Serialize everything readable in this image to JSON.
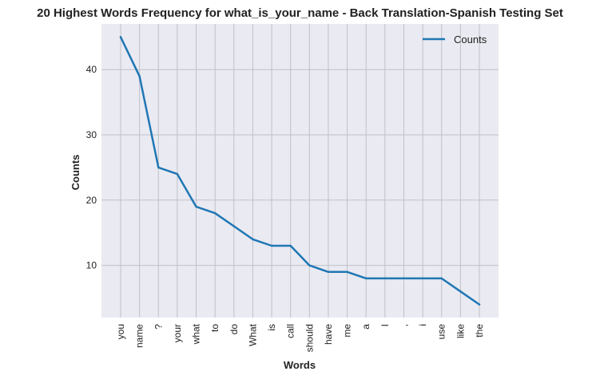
{
  "chart_data": {
    "type": "line",
    "title": "20 Highest Words Frequency for what_is_your_name - Back Translation-Spanish Testing Set",
    "xlabel": "Words",
    "ylabel": "Counts",
    "categories": [
      "you",
      "name",
      "?",
      "your",
      "what",
      "to",
      "do",
      "What",
      "is",
      "call",
      "should",
      "have",
      "me",
      "a",
      "I",
      ",",
      "i",
      "use",
      "like",
      "the"
    ],
    "series": [
      {
        "name": "Counts",
        "values": [
          45,
          39,
          25,
          24,
          19,
          18,
          16,
          14,
          13,
          13,
          10,
          9,
          9,
          8,
          8,
          8,
          8,
          8,
          6,
          4
        ]
      }
    ],
    "ylim": [
      2,
      47
    ],
    "yticks": [
      10,
      20,
      30,
      40
    ],
    "grid": true,
    "legend_position": "top-right",
    "colors": {
      "line": "#1f77b4",
      "plot_bg": "#eaeaf2",
      "grid": "#c0c0c8"
    }
  }
}
